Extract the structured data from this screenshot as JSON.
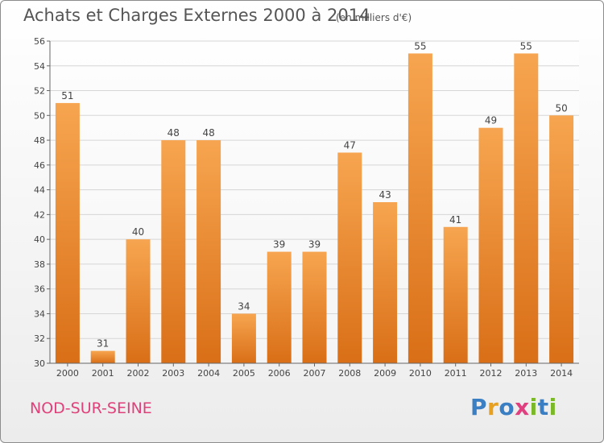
{
  "header": {
    "title": "Achats et Charges Externes 2000 à 2014",
    "unit": "(en milliers d'€)"
  },
  "footer": {
    "commune": "NOD-SUR-SEINE",
    "logo_text": "Proxiti",
    "logo_letters": [
      {
        "ch": "P",
        "color": "#3a7fc4"
      },
      {
        "ch": "r",
        "color": "#e8a020"
      },
      {
        "ch": "o",
        "color": "#3a7fc4"
      },
      {
        "ch": "x",
        "color": "#e04080"
      },
      {
        "ch": "i",
        "color": "#7ab828"
      },
      {
        "ch": "t",
        "color": "#3a7fc4"
      },
      {
        "ch": "i",
        "color": "#7ab828"
      }
    ]
  },
  "chart_data": {
    "type": "bar",
    "title": "Achats et Charges Externes 2000 à 2014",
    "xlabel": "",
    "ylabel": "",
    "categories": [
      "2000",
      "2001",
      "2002",
      "2003",
      "2004",
      "2005",
      "2006",
      "2007",
      "2008",
      "2009",
      "2010",
      "2011",
      "2012",
      "2013",
      "2014"
    ],
    "values": [
      51,
      31,
      40,
      48,
      48,
      34,
      39,
      39,
      47,
      43,
      55,
      41,
      49,
      55,
      50
    ],
    "ylim": [
      30,
      56
    ],
    "yticks": [
      30,
      32,
      34,
      36,
      38,
      40,
      42,
      44,
      46,
      48,
      50,
      52,
      54,
      56
    ],
    "grid": true,
    "bar_color_light": "#f7a550",
    "bar_color_dark": "#d96f17"
  }
}
